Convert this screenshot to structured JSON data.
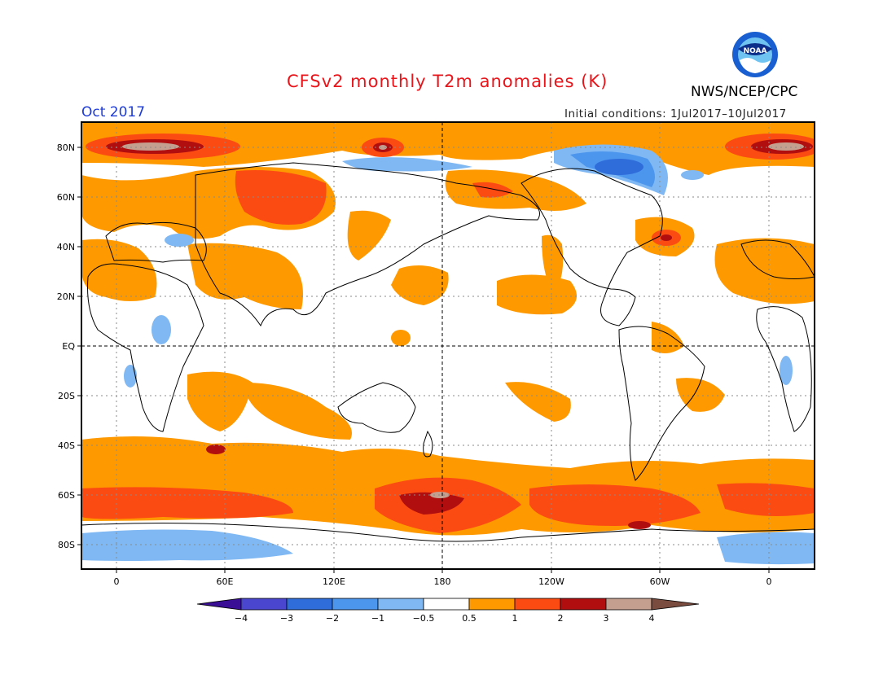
{
  "header": {
    "title": "CFSv2 monthly T2m anomalies (K)",
    "valid_month": "Oct 2017",
    "agency": "NWS/NCEP/CPC",
    "initial_conditions": "Initial conditions: 1Jul2017–10Jul2017",
    "logo_text": "NOAA"
  },
  "map": {
    "lat_ticks": [
      "80N",
      "60N",
      "40N",
      "20N",
      "EQ",
      "20S",
      "40S",
      "60S",
      "80S"
    ],
    "lon_ticks": [
      "0",
      "60E",
      "120E",
      "180",
      "120W",
      "60W",
      "0"
    ],
    "reference_lines": [
      "EQ",
      "180"
    ],
    "grid": "dotted"
  },
  "legend": {
    "labels": [
      "−4",
      "−3",
      "−2",
      "−1",
      "−0.5",
      "0.5",
      "1",
      "2",
      "3",
      "4"
    ],
    "colors": [
      "#3a0f96",
      "#4a46cf",
      "#2f6ddb",
      "#4d96ee",
      "#7fb8f3",
      "#ffffff",
      "#fe9a00",
      "#fc4b12",
      "#b10f0f",
      "#c49e8f",
      "#7a4c3f"
    ]
  },
  "colors": {
    "title": "#e8151b",
    "month": "#1d3bd6",
    "orange": "#fe9a00",
    "red_orange": "#fc4b12",
    "dark_red": "#b10f0f",
    "tan": "#c49e8f",
    "light_blue": "#7fb8f3",
    "mid_blue": "#4d96ee",
    "blue": "#2f6ddb"
  }
}
